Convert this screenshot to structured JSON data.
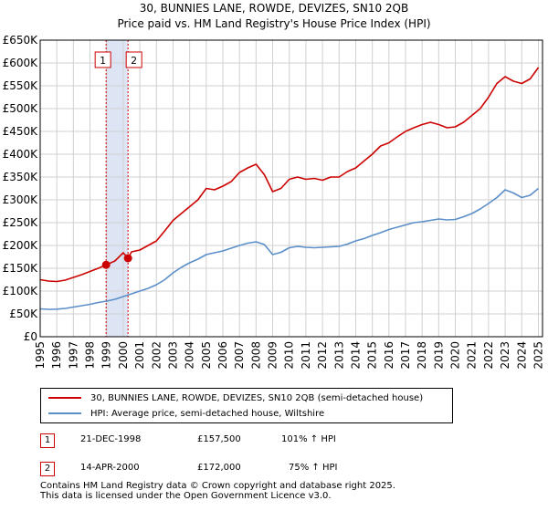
{
  "chart_data": {
    "type": "line",
    "title": "30, BUNNIES LANE, ROWDE, DEVIZES, SN10 2QB",
    "subtitle": "Price paid vs. HM Land Registry's House Price Index (HPI)",
    "xlabel": "",
    "ylabel": "",
    "xlim": [
      1995.0,
      2025.25
    ],
    "ylim": [
      0,
      650000
    ],
    "x_ticks": [
      1995,
      1996,
      1997,
      1998,
      1999,
      2000,
      2001,
      2002,
      2003,
      2004,
      2005,
      2006,
      2007,
      2008,
      2009,
      2010,
      2011,
      2012,
      2013,
      2014,
      2015,
      2016,
      2017,
      2018,
      2019,
      2020,
      2021,
      2022,
      2023,
      2024,
      2025
    ],
    "y_ticks": [
      0,
      50000,
      100000,
      150000,
      200000,
      250000,
      300000,
      350000,
      400000,
      450000,
      500000,
      550000,
      600000,
      650000
    ],
    "y_tick_labels": [
      "£0",
      "£50K",
      "£100K",
      "£150K",
      "£200K",
      "£250K",
      "£300K",
      "£350K",
      "£400K",
      "£450K",
      "£500K",
      "£550K",
      "£600K",
      "£650K"
    ],
    "grid": true,
    "series": [
      {
        "name": "30, BUNNIES LANE, ROWDE, DEVIZES, SN10 2QB (semi-detached house)",
        "color": "#cc0000",
        "x": [
          1995.0,
          1995.5,
          1996.0,
          1996.5,
          1997.0,
          1997.5,
          1998.0,
          1998.5,
          1998.97,
          1999.5,
          2000.0,
          2000.29,
          2000.5,
          2001.0,
          2001.5,
          2002.0,
          2002.5,
          2003.0,
          2003.5,
          2004.0,
          2004.5,
          2005.0,
          2005.5,
          2006.0,
          2006.5,
          2007.0,
          2007.5,
          2008.0,
          2008.5,
          2009.0,
          2009.5,
          2010.0,
          2010.5,
          2011.0,
          2011.5,
          2012.0,
          2012.5,
          2013.0,
          2013.5,
          2014.0,
          2014.5,
          2015.0,
          2015.5,
          2016.0,
          2016.5,
          2017.0,
          2017.5,
          2018.0,
          2018.5,
          2019.0,
          2019.5,
          2020.0,
          2020.5,
          2021.0,
          2021.5,
          2022.0,
          2022.5,
          2023.0,
          2023.5,
          2024.0,
          2024.5,
          2025.0
        ],
        "values": [
          125000,
          122000,
          121000,
          124000,
          130000,
          136000,
          143000,
          150000,
          157500,
          166000,
          184000,
          172000,
          186000,
          190000,
          200000,
          210000,
          232000,
          255000,
          270000,
          285000,
          300000,
          325000,
          322000,
          330000,
          340000,
          360000,
          370000,
          378000,
          355000,
          318000,
          325000,
          345000,
          350000,
          345000,
          347000,
          343000,
          350000,
          350000,
          362000,
          370000,
          385000,
          400000,
          418000,
          425000,
          438000,
          450000,
          458000,
          465000,
          470000,
          465000,
          458000,
          460000,
          470000,
          485000,
          500000,
          525000,
          555000,
          570000,
          560000,
          555000,
          565000,
          590000
        ]
      },
      {
        "name": "HPI: Average price, semi-detached house, Wiltshire",
        "color": "#5b8fc9",
        "x": [
          1995.0,
          1995.5,
          1996.0,
          1996.5,
          1997.0,
          1997.5,
          1998.0,
          1998.5,
          1999.0,
          1999.5,
          2000.0,
          2000.5,
          2001.0,
          2001.5,
          2002.0,
          2002.5,
          2003.0,
          2003.5,
          2004.0,
          2004.5,
          2005.0,
          2005.5,
          2006.0,
          2006.5,
          2007.0,
          2007.5,
          2008.0,
          2008.5,
          2009.0,
          2009.5,
          2010.0,
          2010.5,
          2011.0,
          2011.5,
          2012.0,
          2012.5,
          2013.0,
          2013.5,
          2014.0,
          2014.5,
          2015.0,
          2015.5,
          2016.0,
          2016.5,
          2017.0,
          2017.5,
          2018.0,
          2018.5,
          2019.0,
          2019.5,
          2020.0,
          2020.5,
          2021.0,
          2021.5,
          2022.0,
          2022.5,
          2023.0,
          2023.5,
          2024.0,
          2024.5,
          2025.0
        ],
        "values": [
          61000,
          60000,
          60500,
          62000,
          65000,
          68000,
          71000,
          75000,
          78000,
          82000,
          88000,
          94000,
          100000,
          106000,
          114000,
          125000,
          140000,
          152000,
          162000,
          170000,
          180000,
          184000,
          188000,
          194000,
          200000,
          205000,
          208000,
          202000,
          180000,
          185000,
          195000,
          198000,
          196000,
          195000,
          196000,
          197000,
          198000,
          203000,
          210000,
          215000,
          222000,
          228000,
          235000,
          240000,
          245000,
          250000,
          252000,
          255000,
          258000,
          256000,
          257000,
          263000,
          270000,
          280000,
          292000,
          305000,
          322000,
          315000,
          305000,
          310000,
          325000
        ]
      }
    ],
    "sales": [
      {
        "label": "1",
        "date": "21-DEC-1998",
        "x": 1998.97,
        "price": 157500,
        "price_label": "£157,500",
        "hpi": "101% ↑ HPI"
      },
      {
        "label": "2",
        "date": "14-APR-2000",
        "x": 2000.29,
        "price": 172000,
        "price_label": "£172,000",
        "hpi": "75% ↑ HPI"
      }
    ]
  },
  "footer": {
    "line1": "Contains HM Land Registry data © Crown copyright and database right 2025.",
    "line2": "This data is licensed under the Open Government Licence v3.0."
  },
  "colors": {
    "price_line": "#cc0000",
    "hpi_line": "#5b8fc9",
    "sale_band": "#dde4f4",
    "marker_box": "#cc0000",
    "grid": "#d0d0d0"
  }
}
